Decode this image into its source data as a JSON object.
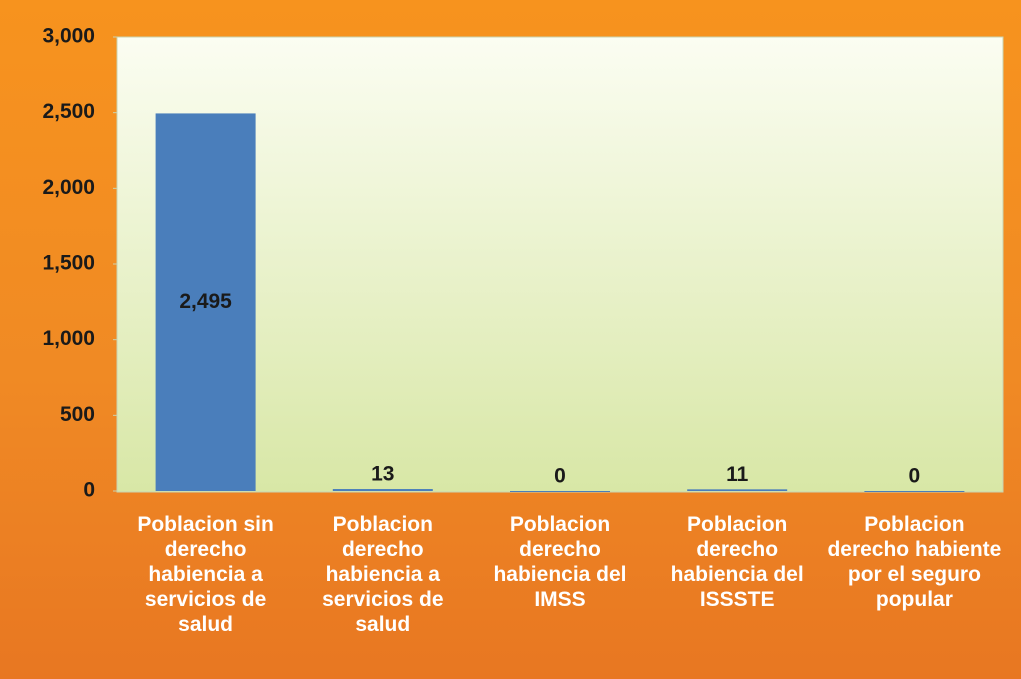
{
  "chart_data": {
    "type": "bar",
    "categories": [
      "Poblacion sin derecho habiencia a servicios de salud",
      "Poblacion derecho habiencia a servicios de salud",
      "Poblacion derecho habiencia del IMSS",
      "Poblacion derecho habiencia del ISSSTE",
      "Poblacion derecho habiente por el seguro popular"
    ],
    "values": [
      2495,
      13,
      0,
      11,
      0
    ],
    "value_labels": [
      "2,495",
      "13",
      "0",
      "11",
      "0"
    ],
    "color": "#4a7ebb",
    "ylim": [
      0,
      3000
    ],
    "yticks": [
      0,
      500,
      {
        "value": 1000,
        "label": "1,000"
      },
      {
        "value": 1500,
        "label": "1,500"
      },
      {
        "value": 2000,
        "label": "2,000"
      },
      {
        "value": 2500,
        "label": "2,500"
      },
      {
        "value": 3000,
        "label": "3,000"
      }
    ]
  }
}
